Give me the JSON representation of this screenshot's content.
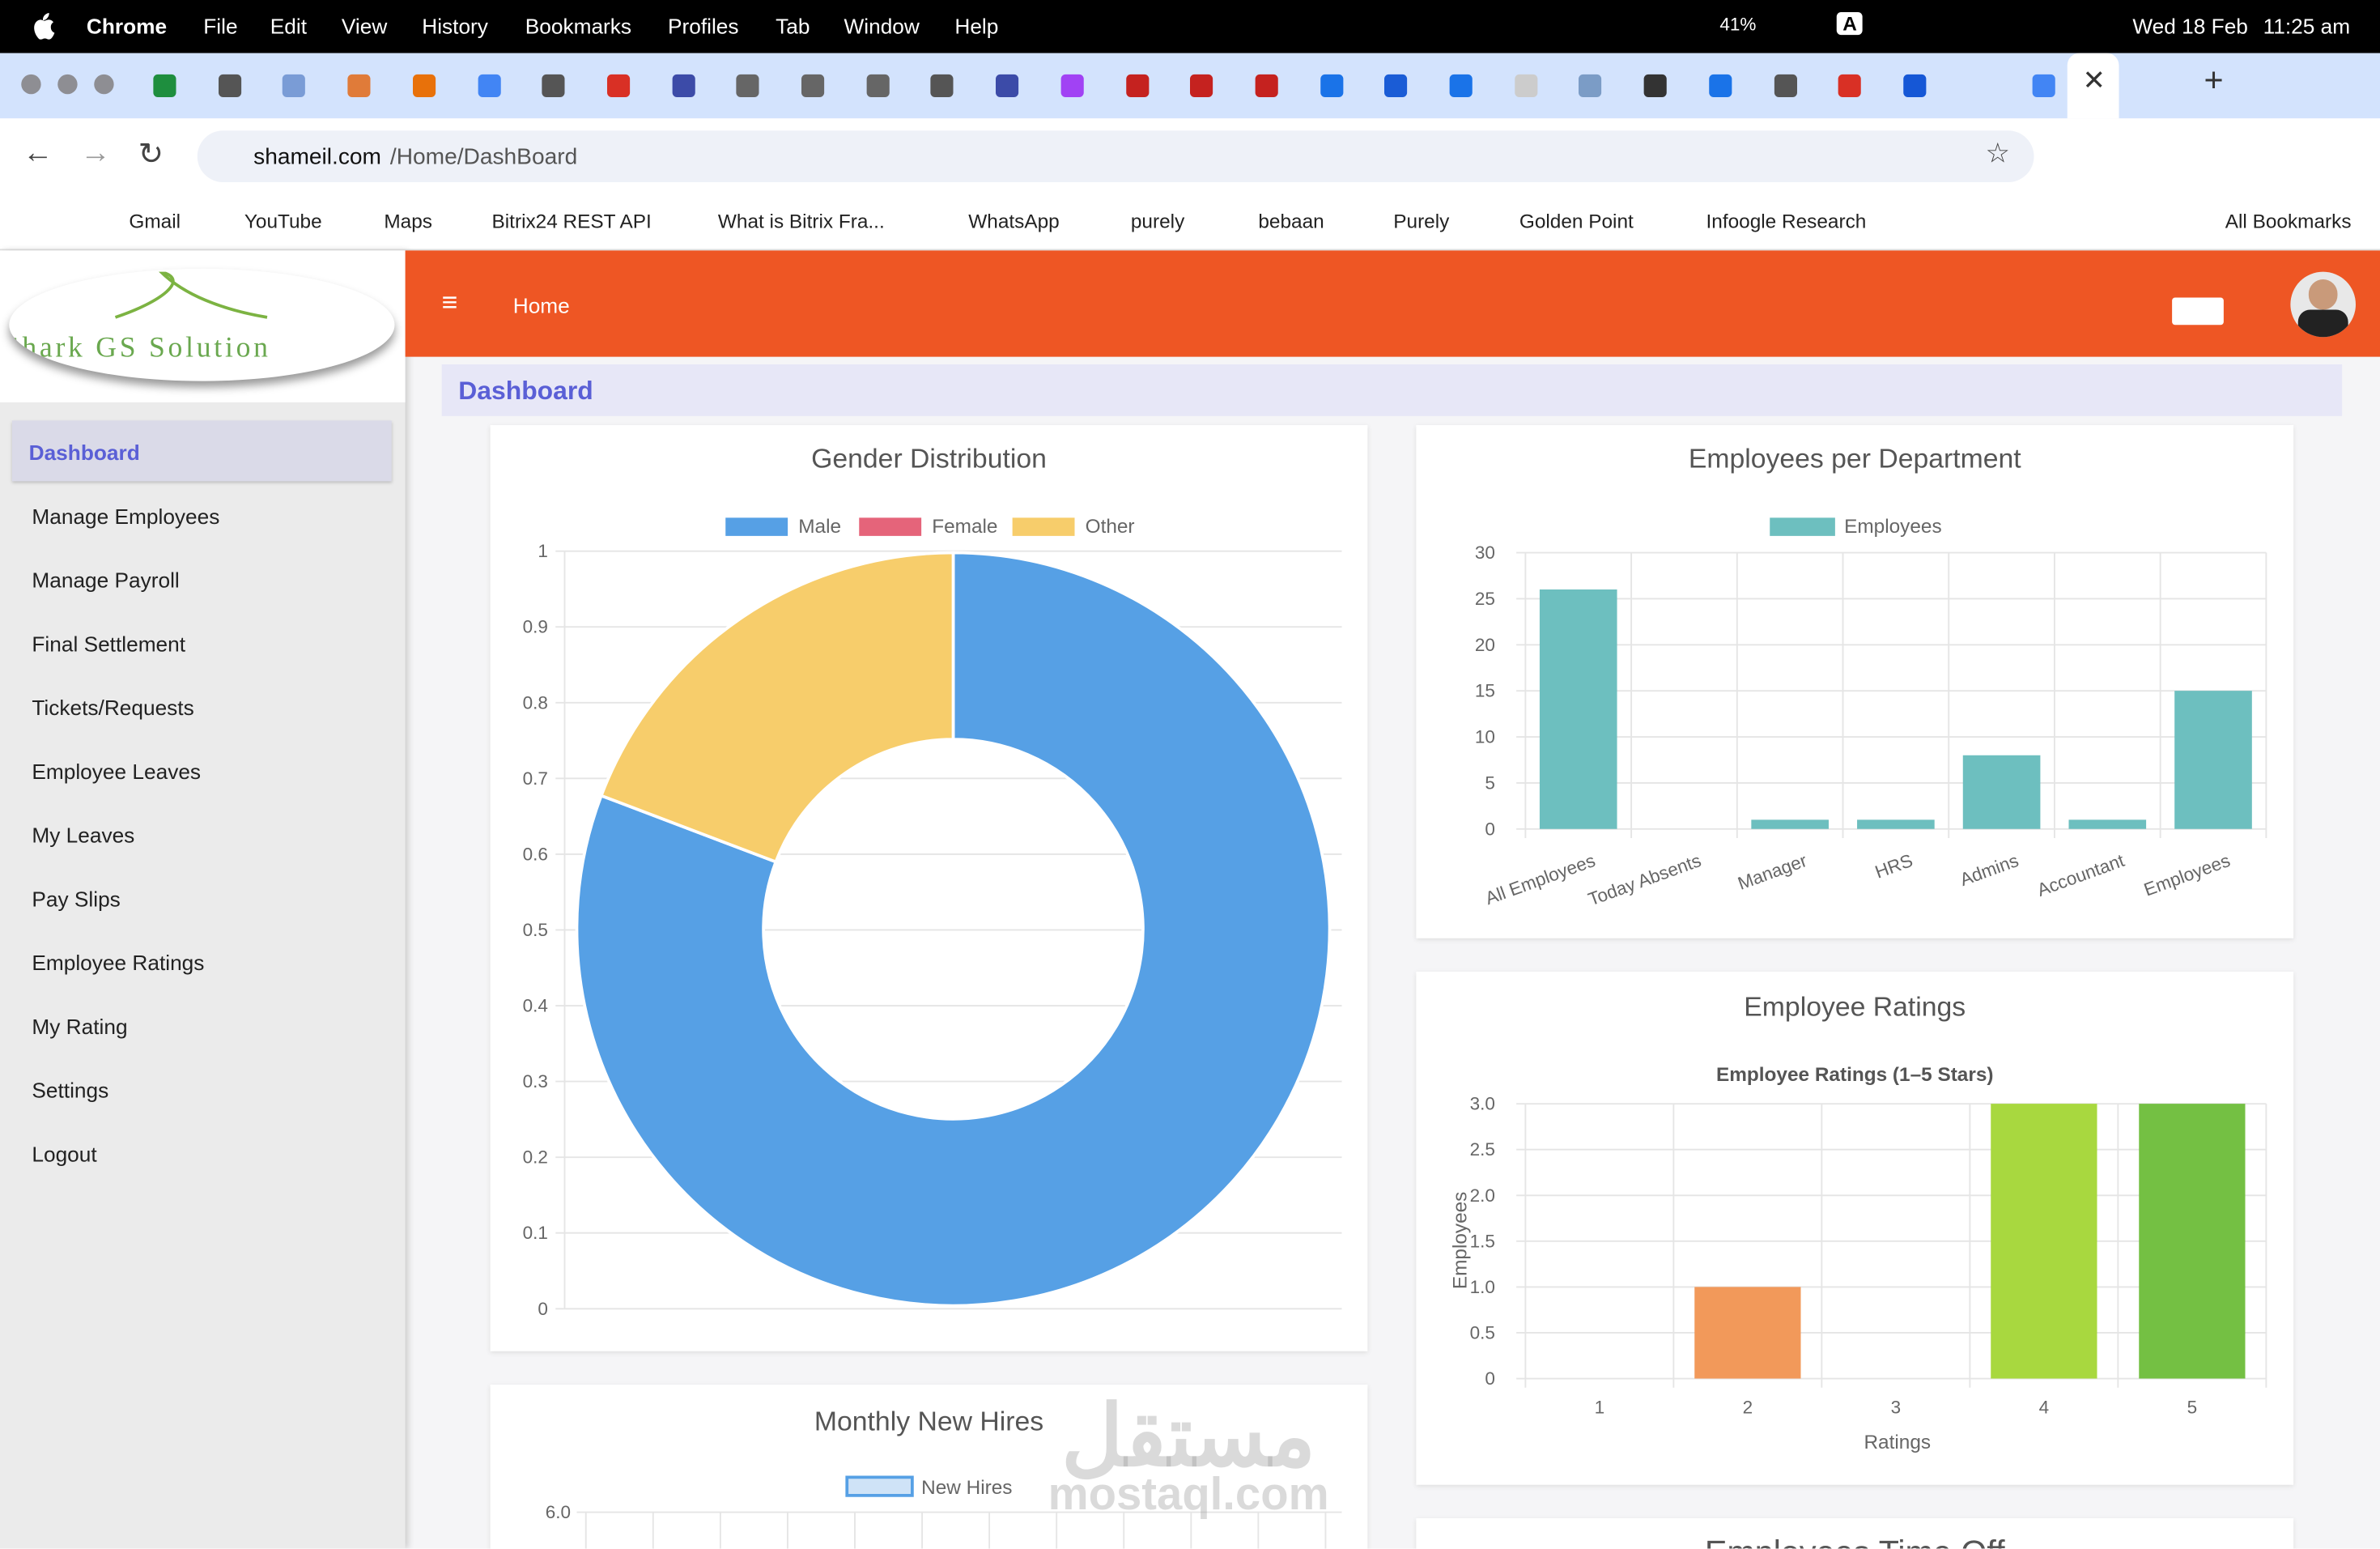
{
  "menubar": {
    "app": "Chrome",
    "menus": [
      "File",
      "Edit",
      "View",
      "History",
      "Bookmarks",
      "Profiles",
      "Tab",
      "Window",
      "Help"
    ],
    "input": "A",
    "battery": "41%",
    "date": "Wed 18 Feb",
    "time": "11:25 am"
  },
  "address": {
    "host": "shameil.com",
    "path": "/Home/DashBoard"
  },
  "bookmarks": [
    "Gmail",
    "YouTube",
    "Maps",
    "Bitrix24 REST API",
    "What is Bitrix Fra...",
    "WhatsApp",
    "purely",
    "bebaan",
    "Purely",
    "Golden Point",
    "Infoogle Research"
  ],
  "all_bookmarks": "All Bookmarks",
  "logo": "Shark GS Solution",
  "sidebar": [
    "Dashboard",
    "Manage Employees",
    "Manage Payroll",
    "Final Settlement",
    "Tickets/Requests",
    "Employee Leaves",
    "My Leaves",
    "Pay Slips",
    "Employee Ratings",
    "My Rating",
    "Settings",
    "Logout"
  ],
  "header": {
    "home": "Home"
  },
  "page_title": "Dashboard",
  "charts": [
    {
      "type": "doughnut",
      "title": "Gender Distribution",
      "series": [
        {
          "name": "Male",
          "color": "#56a0e5",
          "value": 21
        },
        {
          "name": "Female",
          "color": "#e5647a",
          "value": 0
        },
        {
          "name": "Other",
          "color": "#f7cd6b",
          "value": 5
        }
      ],
      "ylim": [
        0,
        1
      ],
      "yticks": [
        0,
        0.1,
        0.2,
        0.3,
        0.4,
        0.5,
        0.6,
        0.7,
        0.8,
        0.9,
        1
      ]
    },
    {
      "type": "bar",
      "title": "Employees per Department",
      "legend": "Employees",
      "color": "#6dbfbf",
      "categories": [
        "All Employees",
        "Today Absents",
        "Manager",
        "HRS",
        "Admins",
        "Accountant",
        "Employees"
      ],
      "values": [
        26,
        0,
        1,
        1,
        8,
        1,
        15
      ],
      "ylim": [
        0,
        30
      ],
      "yticks": [
        0,
        5,
        10,
        15,
        20,
        25,
        30
      ]
    },
    {
      "type": "bar",
      "title": "Employee Ratings",
      "subtitle": "Employee Ratings (1–5 Stars)",
      "x_label": "Ratings",
      "y_label": "Employees",
      "categories": [
        "1",
        "2",
        "3",
        "4",
        "5"
      ],
      "values": [
        0,
        1,
        0,
        3,
        3
      ],
      "colors": [
        "#ef5b5b",
        "#f2995a",
        "#f5c542",
        "#a8d83f",
        "#74c043"
      ],
      "ylim": [
        0,
        3
      ],
      "yticks": [
        0,
        0.5,
        {
          "value": 1,
          "label": "1.0"
        },
        1.5,
        {
          "value": 2,
          "label": "2.0"
        },
        2.5,
        {
          "value": 3,
          "label": "3.0"
        }
      ]
    },
    {
      "type": "line",
      "title": "Monthly New Hires",
      "legend": "New Hires",
      "color": "#56a0e5",
      "yticks": [
        {
          "value": 6,
          "label": "6.0"
        }
      ]
    },
    {
      "type": "bar",
      "title": "Employees Time Off"
    }
  ],
  "watermark": {
    "arabic": "مستقل",
    "latin": "mostaql.com"
  }
}
